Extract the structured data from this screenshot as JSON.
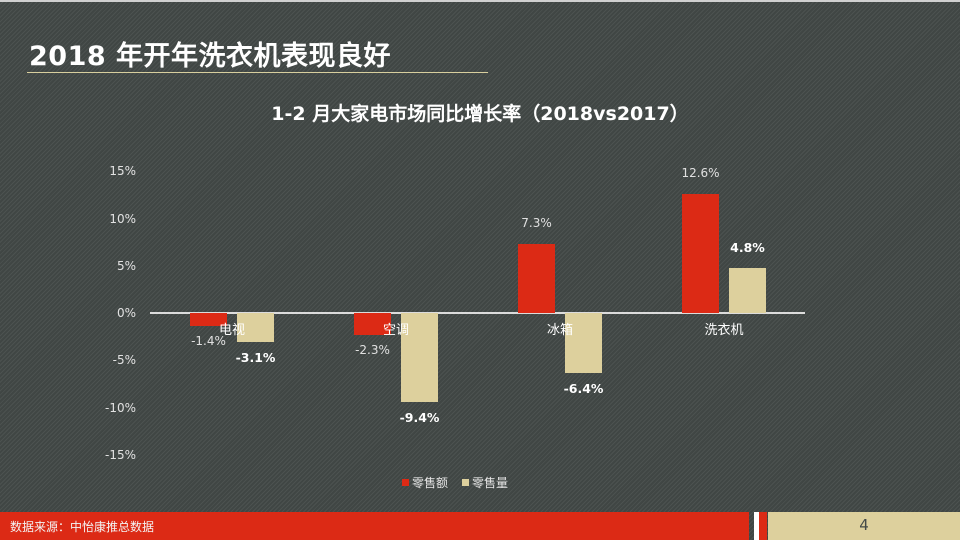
{
  "slide": {
    "title": "2018 年开年洗衣机表现良好",
    "page_number": "4"
  },
  "footer": {
    "source": "数据来源：中怡康推总数据"
  },
  "colors": {
    "background": "#444a48",
    "retail_amount": "#dc2a15",
    "retail_volume": "#ddd09d",
    "title_rule": "#d8cf9e"
  },
  "chart_data": {
    "type": "bar",
    "title": "1-2 月大家电市场同比增长率（2018vs2017）",
    "xlabel": "",
    "ylabel": "",
    "categories": [
      "电视",
      "空调",
      "冰箱",
      "洗衣机"
    ],
    "series": [
      {
        "name": "零售额",
        "values": [
          -1.4,
          -2.3,
          7.3,
          12.6
        ],
        "labels": [
          "-1.4%",
          "-2.3%",
          "7.3%",
          "12.6%"
        ]
      },
      {
        "name": "零售量",
        "values": [
          -3.1,
          -9.4,
          -6.4,
          4.8
        ],
        "labels": [
          "-3.1%",
          "-9.4%",
          "-6.4%",
          "4.8%"
        ]
      }
    ],
    "ylim": [
      -15,
      15
    ],
    "yticks": [
      "15%",
      "10%",
      "5%",
      "0%",
      "-5%",
      "-10%",
      "-15%"
    ],
    "grid": false,
    "legend_position": "bottom"
  }
}
